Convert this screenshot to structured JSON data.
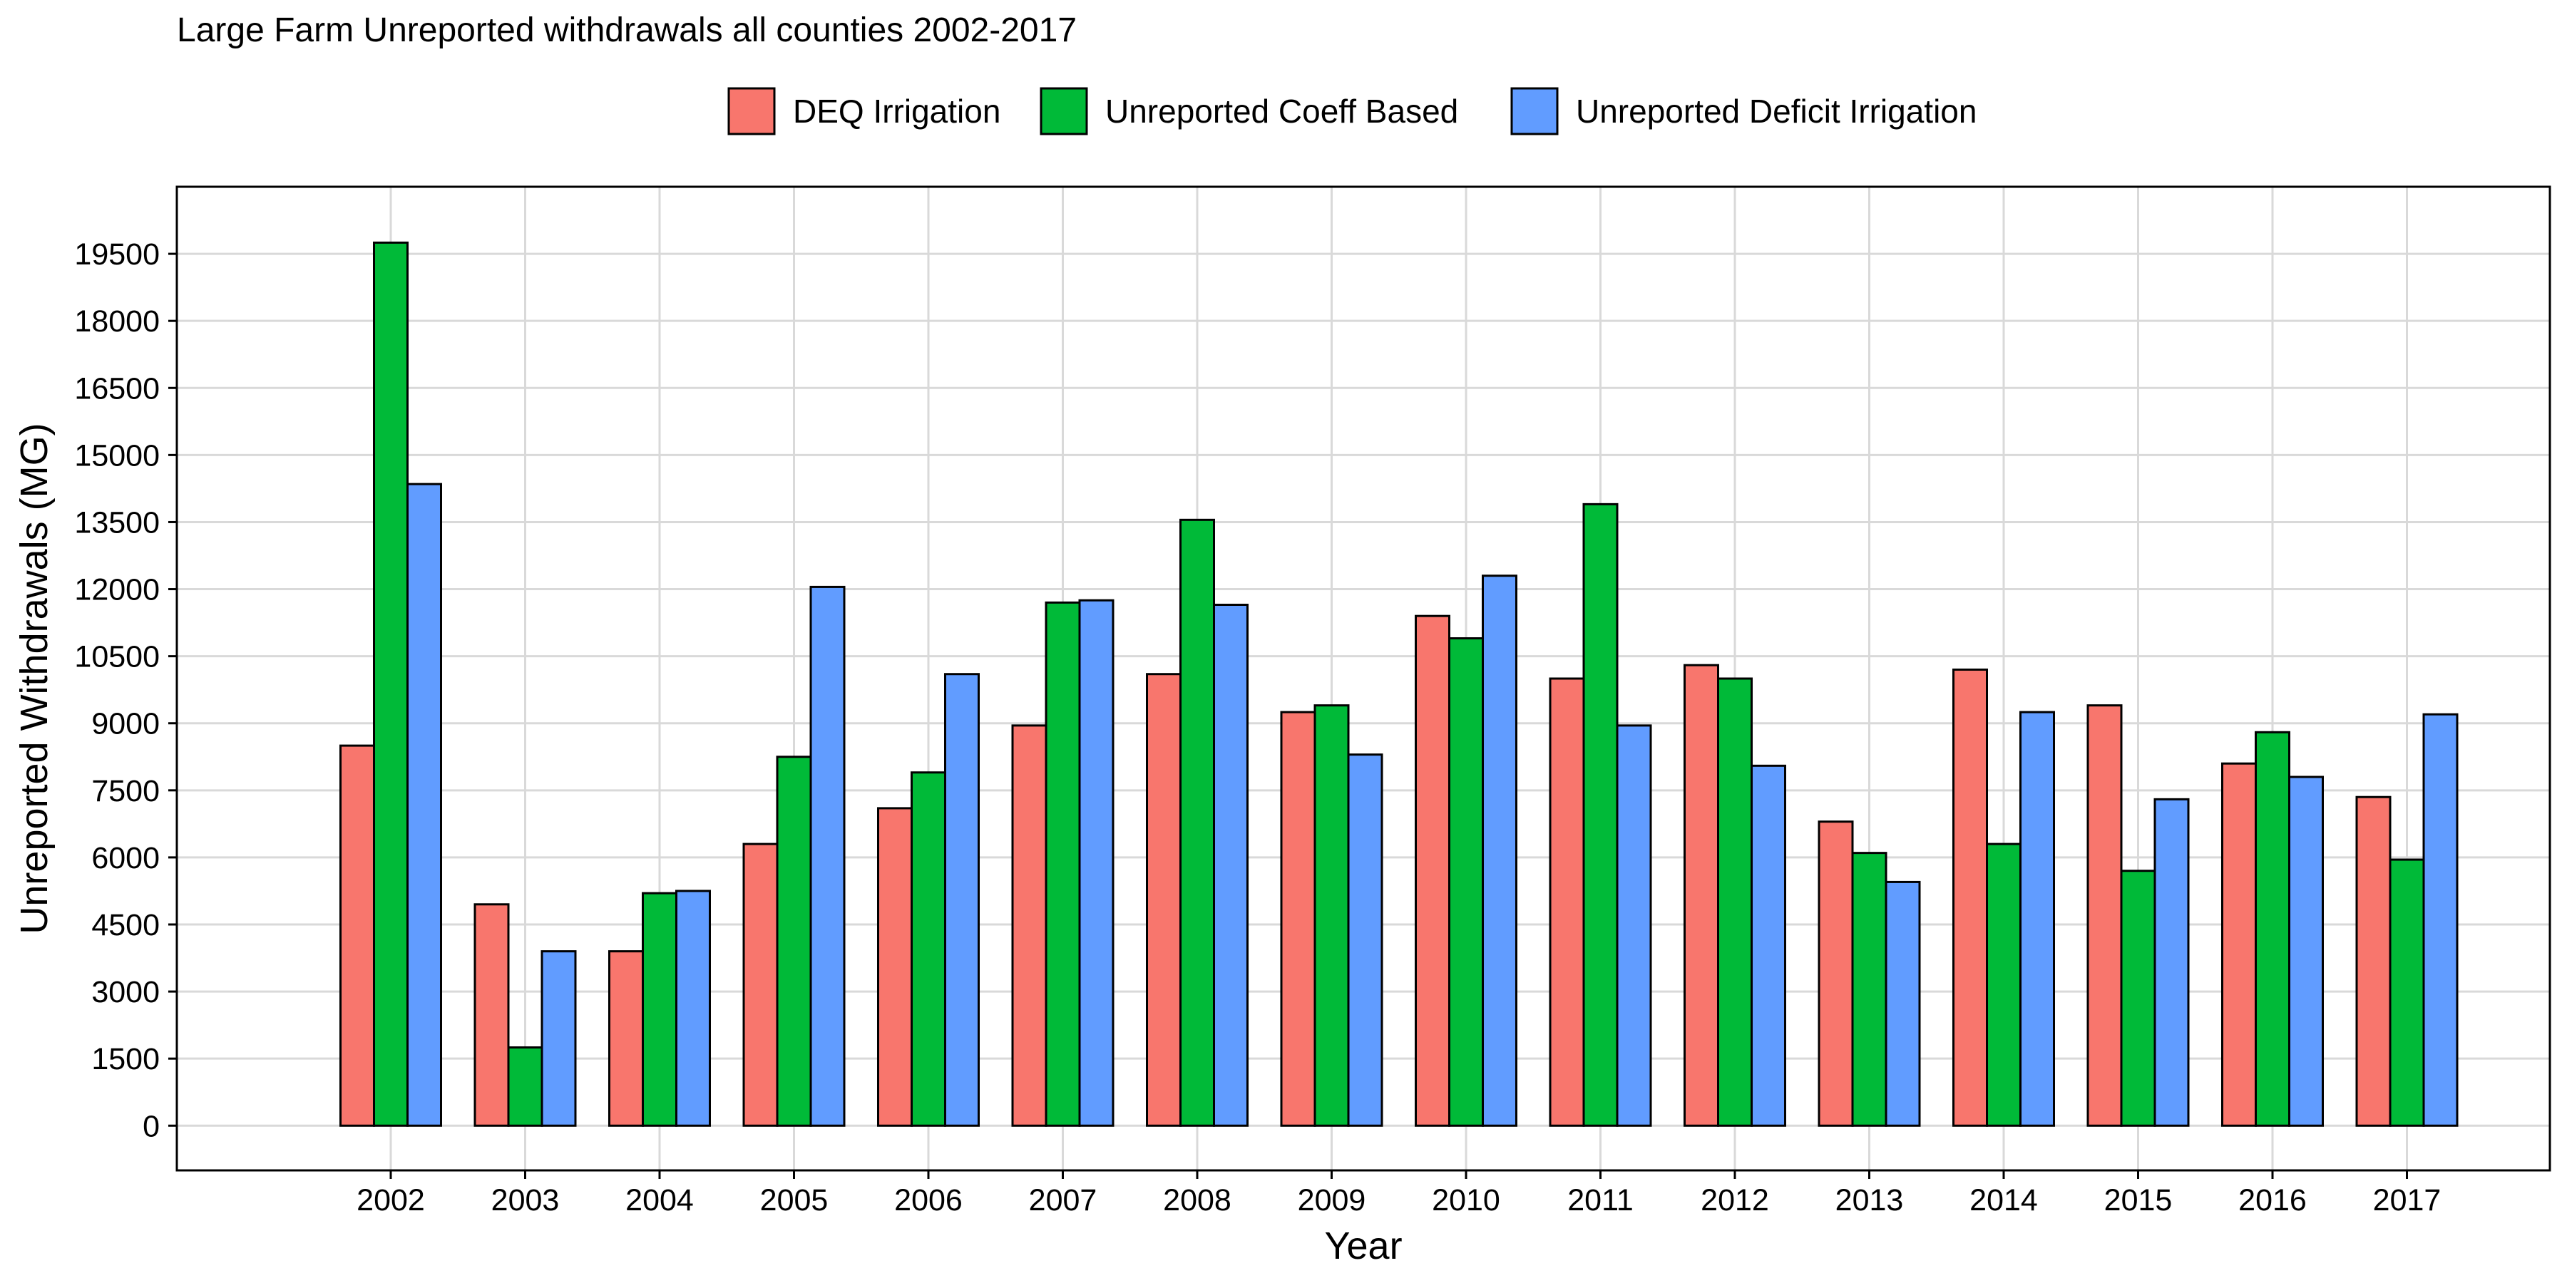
{
  "chart_data": {
    "type": "bar",
    "title": "Large Farm Unreported withdrawals all counties 2002-2017",
    "xlabel": "Year",
    "ylabel": "Unreported Withdrawals (MG)",
    "categories": [
      "2002",
      "2003",
      "2004",
      "2005",
      "2006",
      "2007",
      "2008",
      "2009",
      "2010",
      "2011",
      "2012",
      "2013",
      "2014",
      "2015",
      "2016",
      "2017"
    ],
    "series": [
      {
        "name": "DEQ Irrigation",
        "color": "#F8766D",
        "values": [
          8500,
          4950,
          3900,
          6300,
          7100,
          8950,
          10100,
          9250,
          11400,
          10000,
          10300,
          6800,
          10200,
          9400,
          8100,
          7350
        ]
      },
      {
        "name": "Unreported Coeff Based",
        "color": "#00BA38",
        "values": [
          19750,
          1750,
          5200,
          8250,
          7900,
          11700,
          13550,
          9400,
          10900,
          13900,
          10000,
          6100,
          6300,
          5700,
          8800,
          5950
        ]
      },
      {
        "name": "Unreported Deficit Irrigation",
        "color": "#619CFF",
        "values": [
          14350,
          3900,
          5250,
          12050,
          10100,
          11750,
          11650,
          8300,
          12300,
          8950,
          8050,
          5450,
          9250,
          7300,
          7800,
          9200
        ]
      }
    ],
    "yticks": [
      0,
      1500,
      3000,
      4500,
      6000,
      7500,
      9000,
      10500,
      12000,
      13500,
      15000,
      16500,
      18000,
      19500
    ],
    "ylim": [
      -1000,
      21000
    ],
    "grid": true,
    "legend_position": "top",
    "colors": {
      "grid": "#D9D9D9",
      "panel_border": "#000000",
      "bar_outline": "#000000"
    }
  }
}
